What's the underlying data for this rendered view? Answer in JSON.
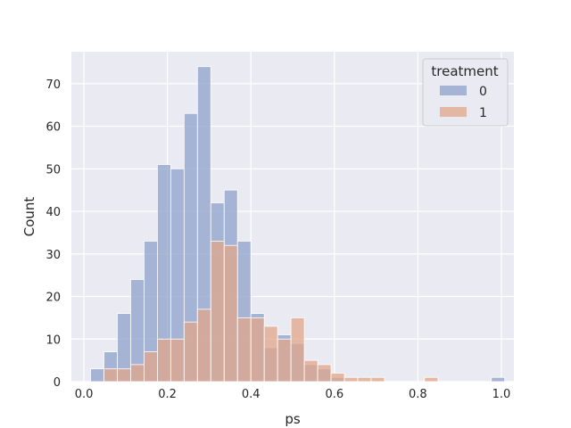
{
  "chart_data": {
    "type": "histogram",
    "xlabel": "ps",
    "ylabel": "Count",
    "xlim": [
      -0.03,
      1.03
    ],
    "ylim": [
      0,
      77.5
    ],
    "xticks": [
      0.0,
      0.2,
      0.4,
      0.6,
      0.8,
      1.0
    ],
    "xtick_labels": [
      "0.0",
      "0.2",
      "0.4",
      "0.6",
      "0.8",
      "1.0"
    ],
    "yticks": [
      0,
      10,
      20,
      30,
      40,
      50,
      60,
      70
    ],
    "ytick_labels": [
      "0",
      "10",
      "20",
      "30",
      "40",
      "50",
      "60",
      "70"
    ],
    "grid": true,
    "legend": {
      "title": "treatment",
      "placement": "top-right"
    },
    "bin_edges": [
      0.016,
      0.048,
      0.08,
      0.112,
      0.144,
      0.176,
      0.208,
      0.24,
      0.272,
      0.304,
      0.336,
      0.368,
      0.4,
      0.432,
      0.464,
      0.496,
      0.528,
      0.56,
      0.592,
      0.624,
      0.656,
      0.688,
      0.72,
      0.752,
      0.784,
      0.816,
      0.848,
      0.88,
      0.912,
      0.944,
      0.976,
      1.008
    ],
    "series": [
      {
        "name": "0",
        "color": "#8da0cb",
        "counts": [
          3,
          7,
          16,
          24,
          33,
          51,
          50,
          63,
          74,
          42,
          45,
          33,
          16,
          8,
          11,
          9,
          4,
          3,
          1,
          0,
          0,
          0,
          0,
          0,
          0,
          0,
          0,
          0,
          0,
          0,
          1
        ]
      },
      {
        "name": "1",
        "color": "#e1a58a",
        "counts": [
          0,
          3,
          3,
          4,
          7,
          10,
          10,
          14,
          17,
          33,
          32,
          15,
          15,
          13,
          10,
          15,
          5,
          4,
          2,
          1,
          1,
          1,
          0,
          0,
          0,
          1,
          0,
          0,
          0,
          0,
          0
        ]
      }
    ]
  }
}
